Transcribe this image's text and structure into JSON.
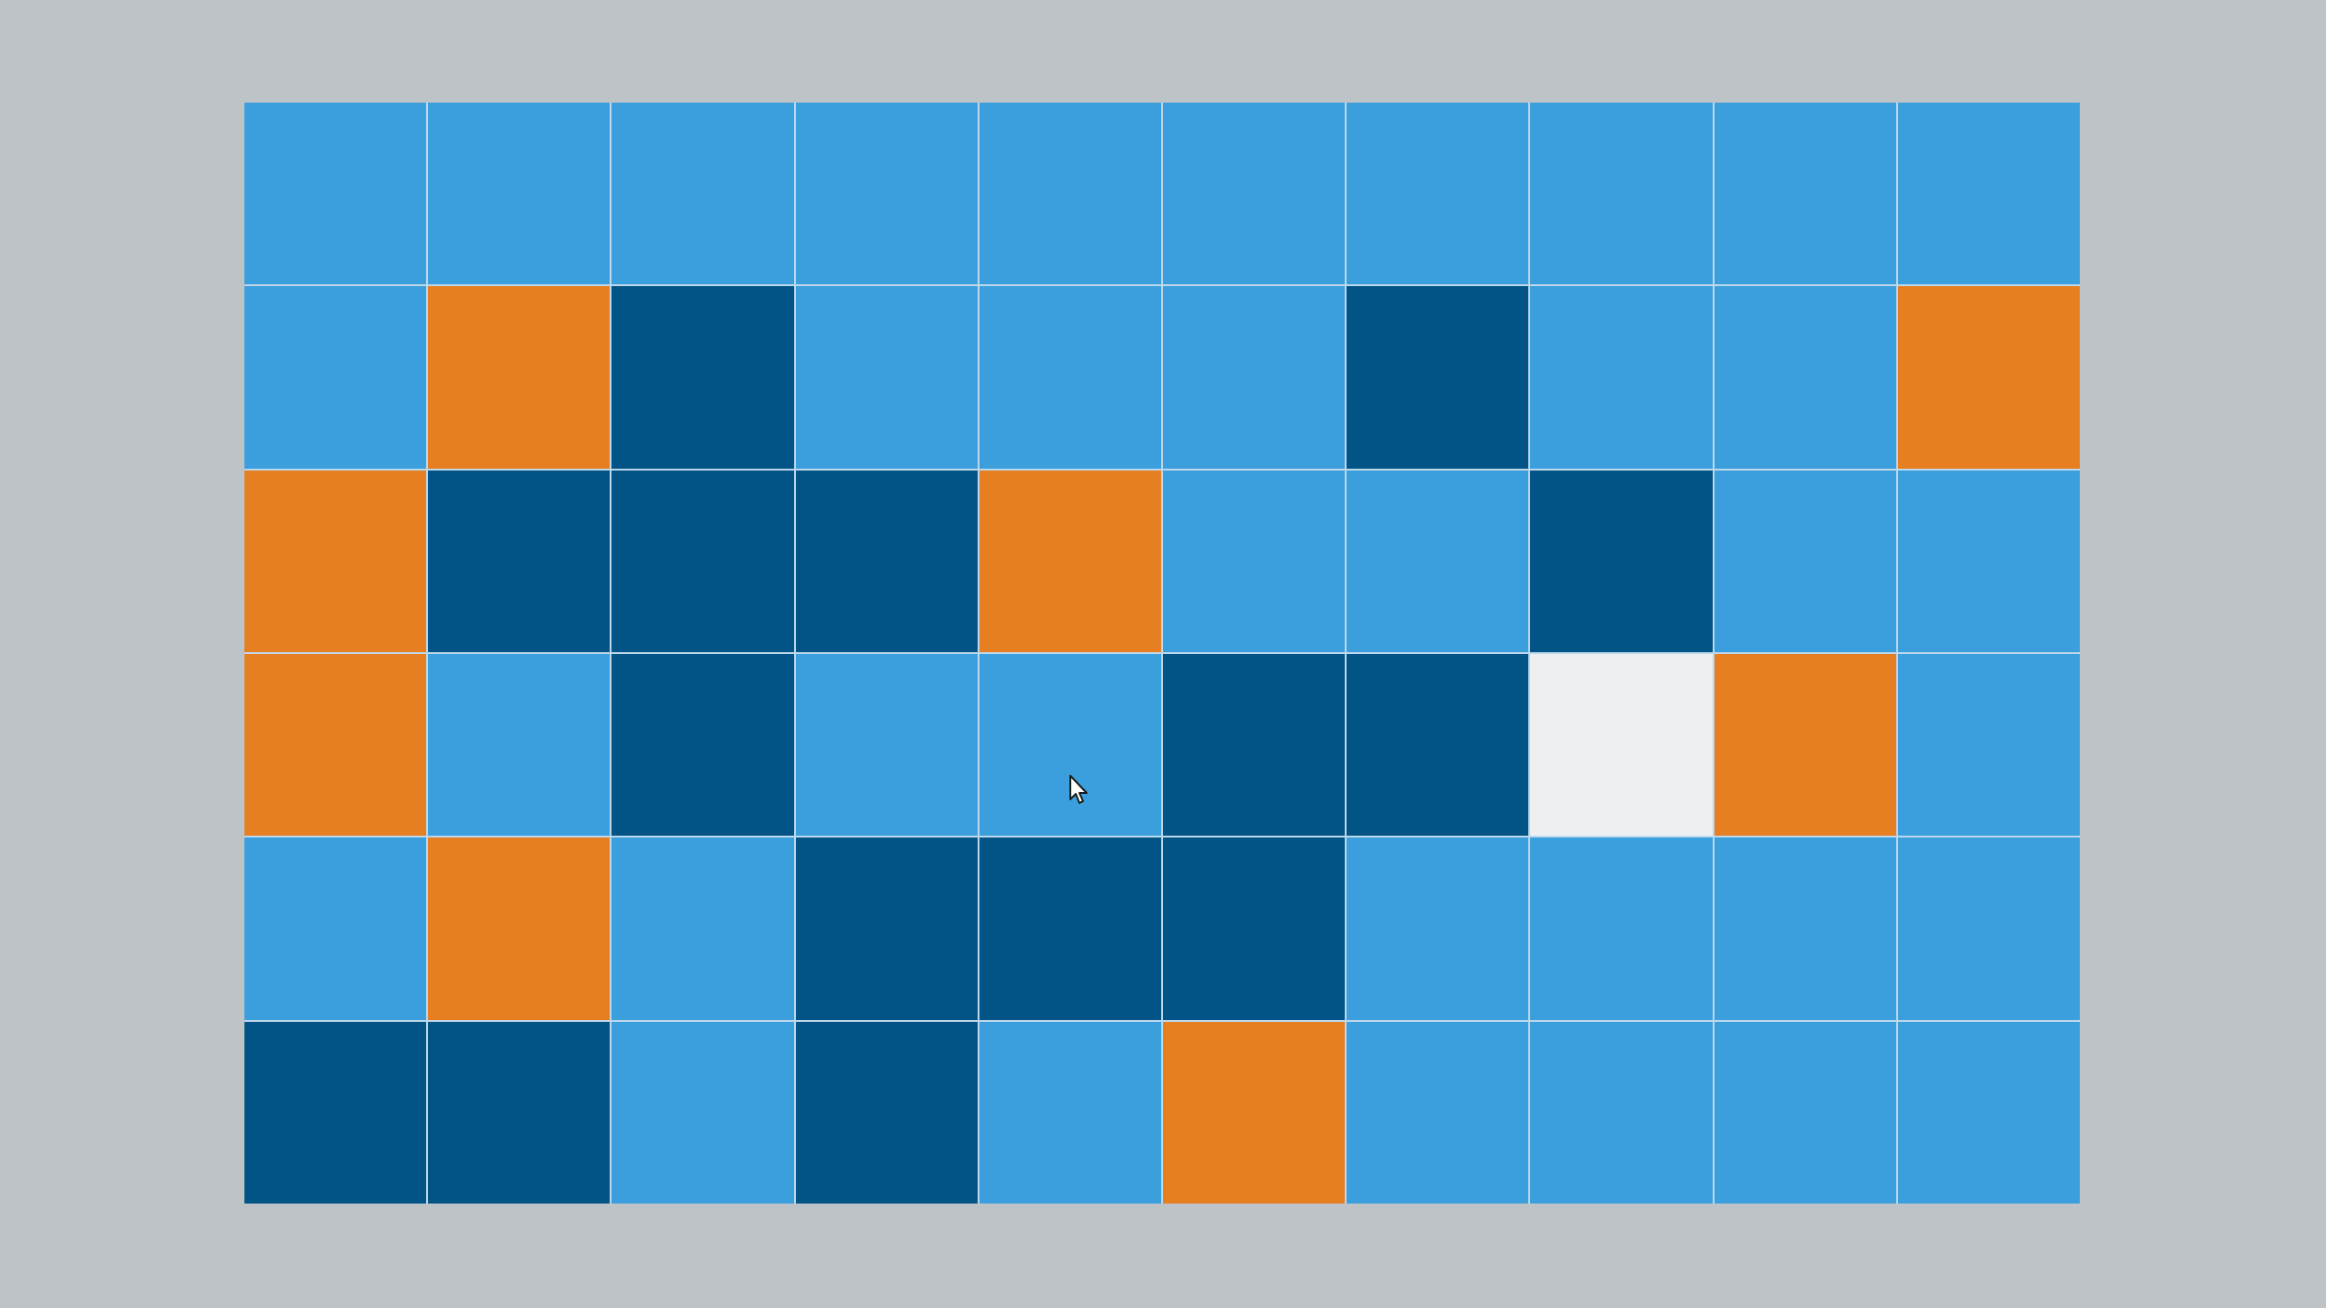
{
  "colors": {
    "background": "#BEC3C7",
    "grid_line": "#BFD9EC",
    "light": "#3A9FDC",
    "dark": "#015485",
    "orange": "#E67E22",
    "white": "#ECF0F1"
  },
  "board": {
    "rows": 6,
    "cols": 10,
    "cells": [
      [
        "light",
        "light",
        "light",
        "light",
        "light",
        "light",
        "light",
        "light",
        "light",
        "light"
      ],
      [
        "light",
        "orange",
        "dark",
        "light",
        "light",
        "light",
        "dark",
        "light",
        "light",
        "orange"
      ],
      [
        "orange",
        "dark",
        "dark",
        "dark",
        "orange",
        "light",
        "light",
        "dark",
        "light",
        "light"
      ],
      [
        "orange",
        "light",
        "dark",
        "light",
        "light",
        "dark",
        "dark",
        "white",
        "orange",
        "light"
      ],
      [
        "light",
        "orange",
        "light",
        "dark",
        "dark",
        "dark",
        "light",
        "light",
        "light",
        "light"
      ],
      [
        "dark",
        "dark",
        "light",
        "dark",
        "light",
        "orange",
        "light",
        "light",
        "light",
        "light"
      ]
    ]
  },
  "cursor": {
    "icon": "arrow-cursor-icon"
  }
}
